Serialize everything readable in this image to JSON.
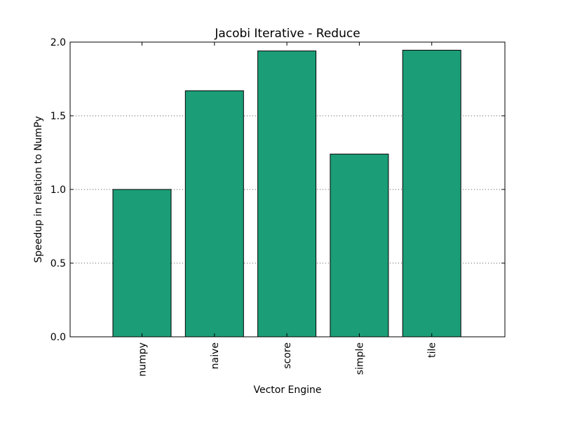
{
  "chart_data": {
    "type": "bar",
    "title": "Jacobi Iterative - Reduce",
    "xlabel": "Vector Engine",
    "ylabel": "Speedup in relation to NumPy",
    "categories": [
      "numpy",
      "naive",
      "score",
      "simple",
      "tile"
    ],
    "values": [
      1.0,
      1.67,
      1.94,
      1.24,
      1.945
    ],
    "ylim": [
      0,
      2.0
    ],
    "yticks": [
      0.0,
      0.5,
      1.0,
      1.5,
      2.0
    ],
    "ytick_labels": [
      "0.0",
      "0.5",
      "1.0",
      "1.5",
      "2.0"
    ],
    "grid": "y-dotted",
    "legend": "none",
    "colors": {
      "bar_fill": "#1b9e77",
      "bar_edge": "#000000",
      "grid": "#555555",
      "axes": "#000000"
    }
  }
}
